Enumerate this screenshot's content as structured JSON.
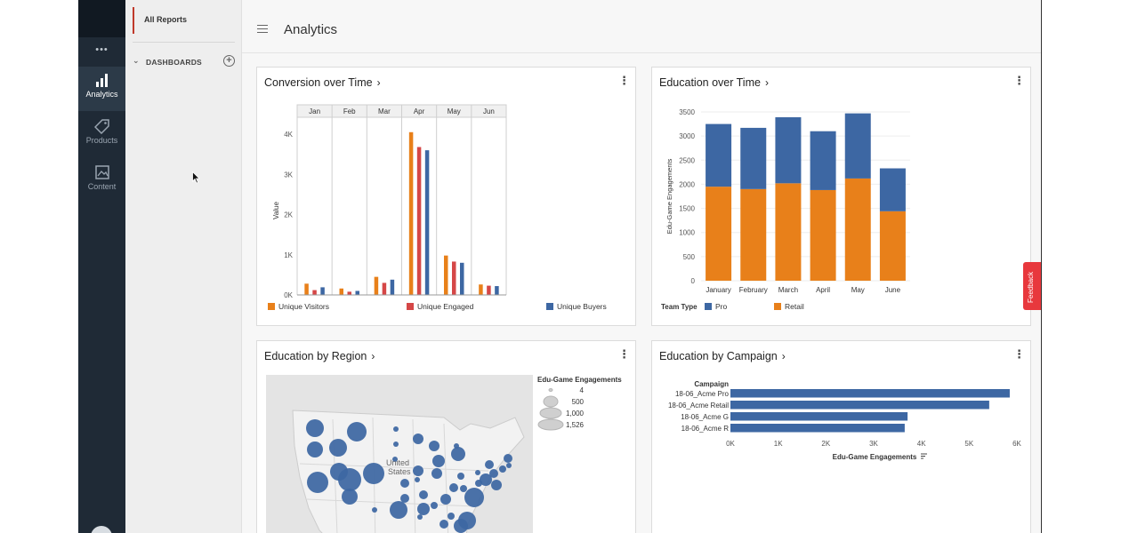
{
  "rail": {
    "more": "•••",
    "items": [
      {
        "label": "Analytics",
        "icon": "bar-chart-icon"
      },
      {
        "label": "Products",
        "icon": "tag-icon"
      },
      {
        "label": "Content",
        "icon": "image-icon"
      }
    ]
  },
  "nav": {
    "all_reports": "All Reports",
    "dashboards": "DASHBOARDS"
  },
  "header": {
    "title": "Analytics"
  },
  "feedback": "Feedback",
  "cards": {
    "conversion": {
      "title": "Conversion over Time"
    },
    "education_time": {
      "title": "Education over Time"
    },
    "region": {
      "title": "Education by Region"
    },
    "campaign": {
      "title": "Education by Campaign"
    }
  },
  "colors": {
    "orange": "#e8801a",
    "red": "#d54747",
    "blue": "#3d67a3",
    "accent": "#c0392b"
  },
  "chart_data": [
    {
      "type": "bar",
      "title": "Conversion over Time",
      "ylabel": "Value",
      "categories": [
        "Jan",
        "Feb",
        "Mar",
        "Apr",
        "May",
        "Jun"
      ],
      "yticks": [
        "0K",
        "1K",
        "2K",
        "3K",
        "4K"
      ],
      "ylim": [
        0,
        4200
      ],
      "series": [
        {
          "name": "Unique Visitors",
          "color": "#e8801a",
          "values": [
            280,
            160,
            450,
            4050,
            980,
            260
          ]
        },
        {
          "name": "Unique Engaged",
          "color": "#d54747",
          "values": [
            120,
            80,
            300,
            3680,
            830,
            230
          ]
        },
        {
          "name": "Unique Buyers",
          "color": "#3d67a3",
          "values": [
            190,
            100,
            380,
            3600,
            800,
            220
          ]
        }
      ]
    },
    {
      "type": "bar",
      "stacked": true,
      "title": "Education over Time",
      "ylabel": "Edu-Game Engagements",
      "legend_title": "Team Type",
      "categories": [
        "January",
        "February",
        "March",
        "April",
        "May",
        "June"
      ],
      "yticks": [
        "0",
        "500",
        "1000",
        "1500",
        "2000",
        "2500",
        "3000",
        "3500"
      ],
      "ylim": [
        0,
        3500
      ],
      "series": [
        {
          "name": "Retail",
          "color": "#e8801a",
          "values": [
            1950,
            1900,
            2020,
            1880,
            2120,
            1440
          ]
        },
        {
          "name": "Pro",
          "color": "#3d67a3",
          "values": [
            1300,
            1270,
            1370,
            1220,
            1350,
            890
          ]
        }
      ]
    },
    {
      "type": "scatter",
      "title": "Education by Region",
      "map_label": "United States",
      "size_legend_title": "Edu-Game Engagements",
      "size_legend": [
        "4",
        "500",
        "1,000",
        "1,526"
      ]
    },
    {
      "type": "bar",
      "orientation": "horizontal",
      "title": "Education by Campaign",
      "category_title": "Campaign",
      "xlabel": "Edu-Game Engagements",
      "categories": [
        "18-06_Acme Pro",
        "18-06_Acme Retail",
        "18-06_Acme G",
        "18-06_Acme R"
      ],
      "values": [
        5850,
        5420,
        3710,
        3650
      ],
      "xticks": [
        "0K",
        "1K",
        "2K",
        "3K",
        "4K",
        "5K",
        "6K"
      ],
      "xlim": [
        0,
        6000
      ]
    }
  ]
}
